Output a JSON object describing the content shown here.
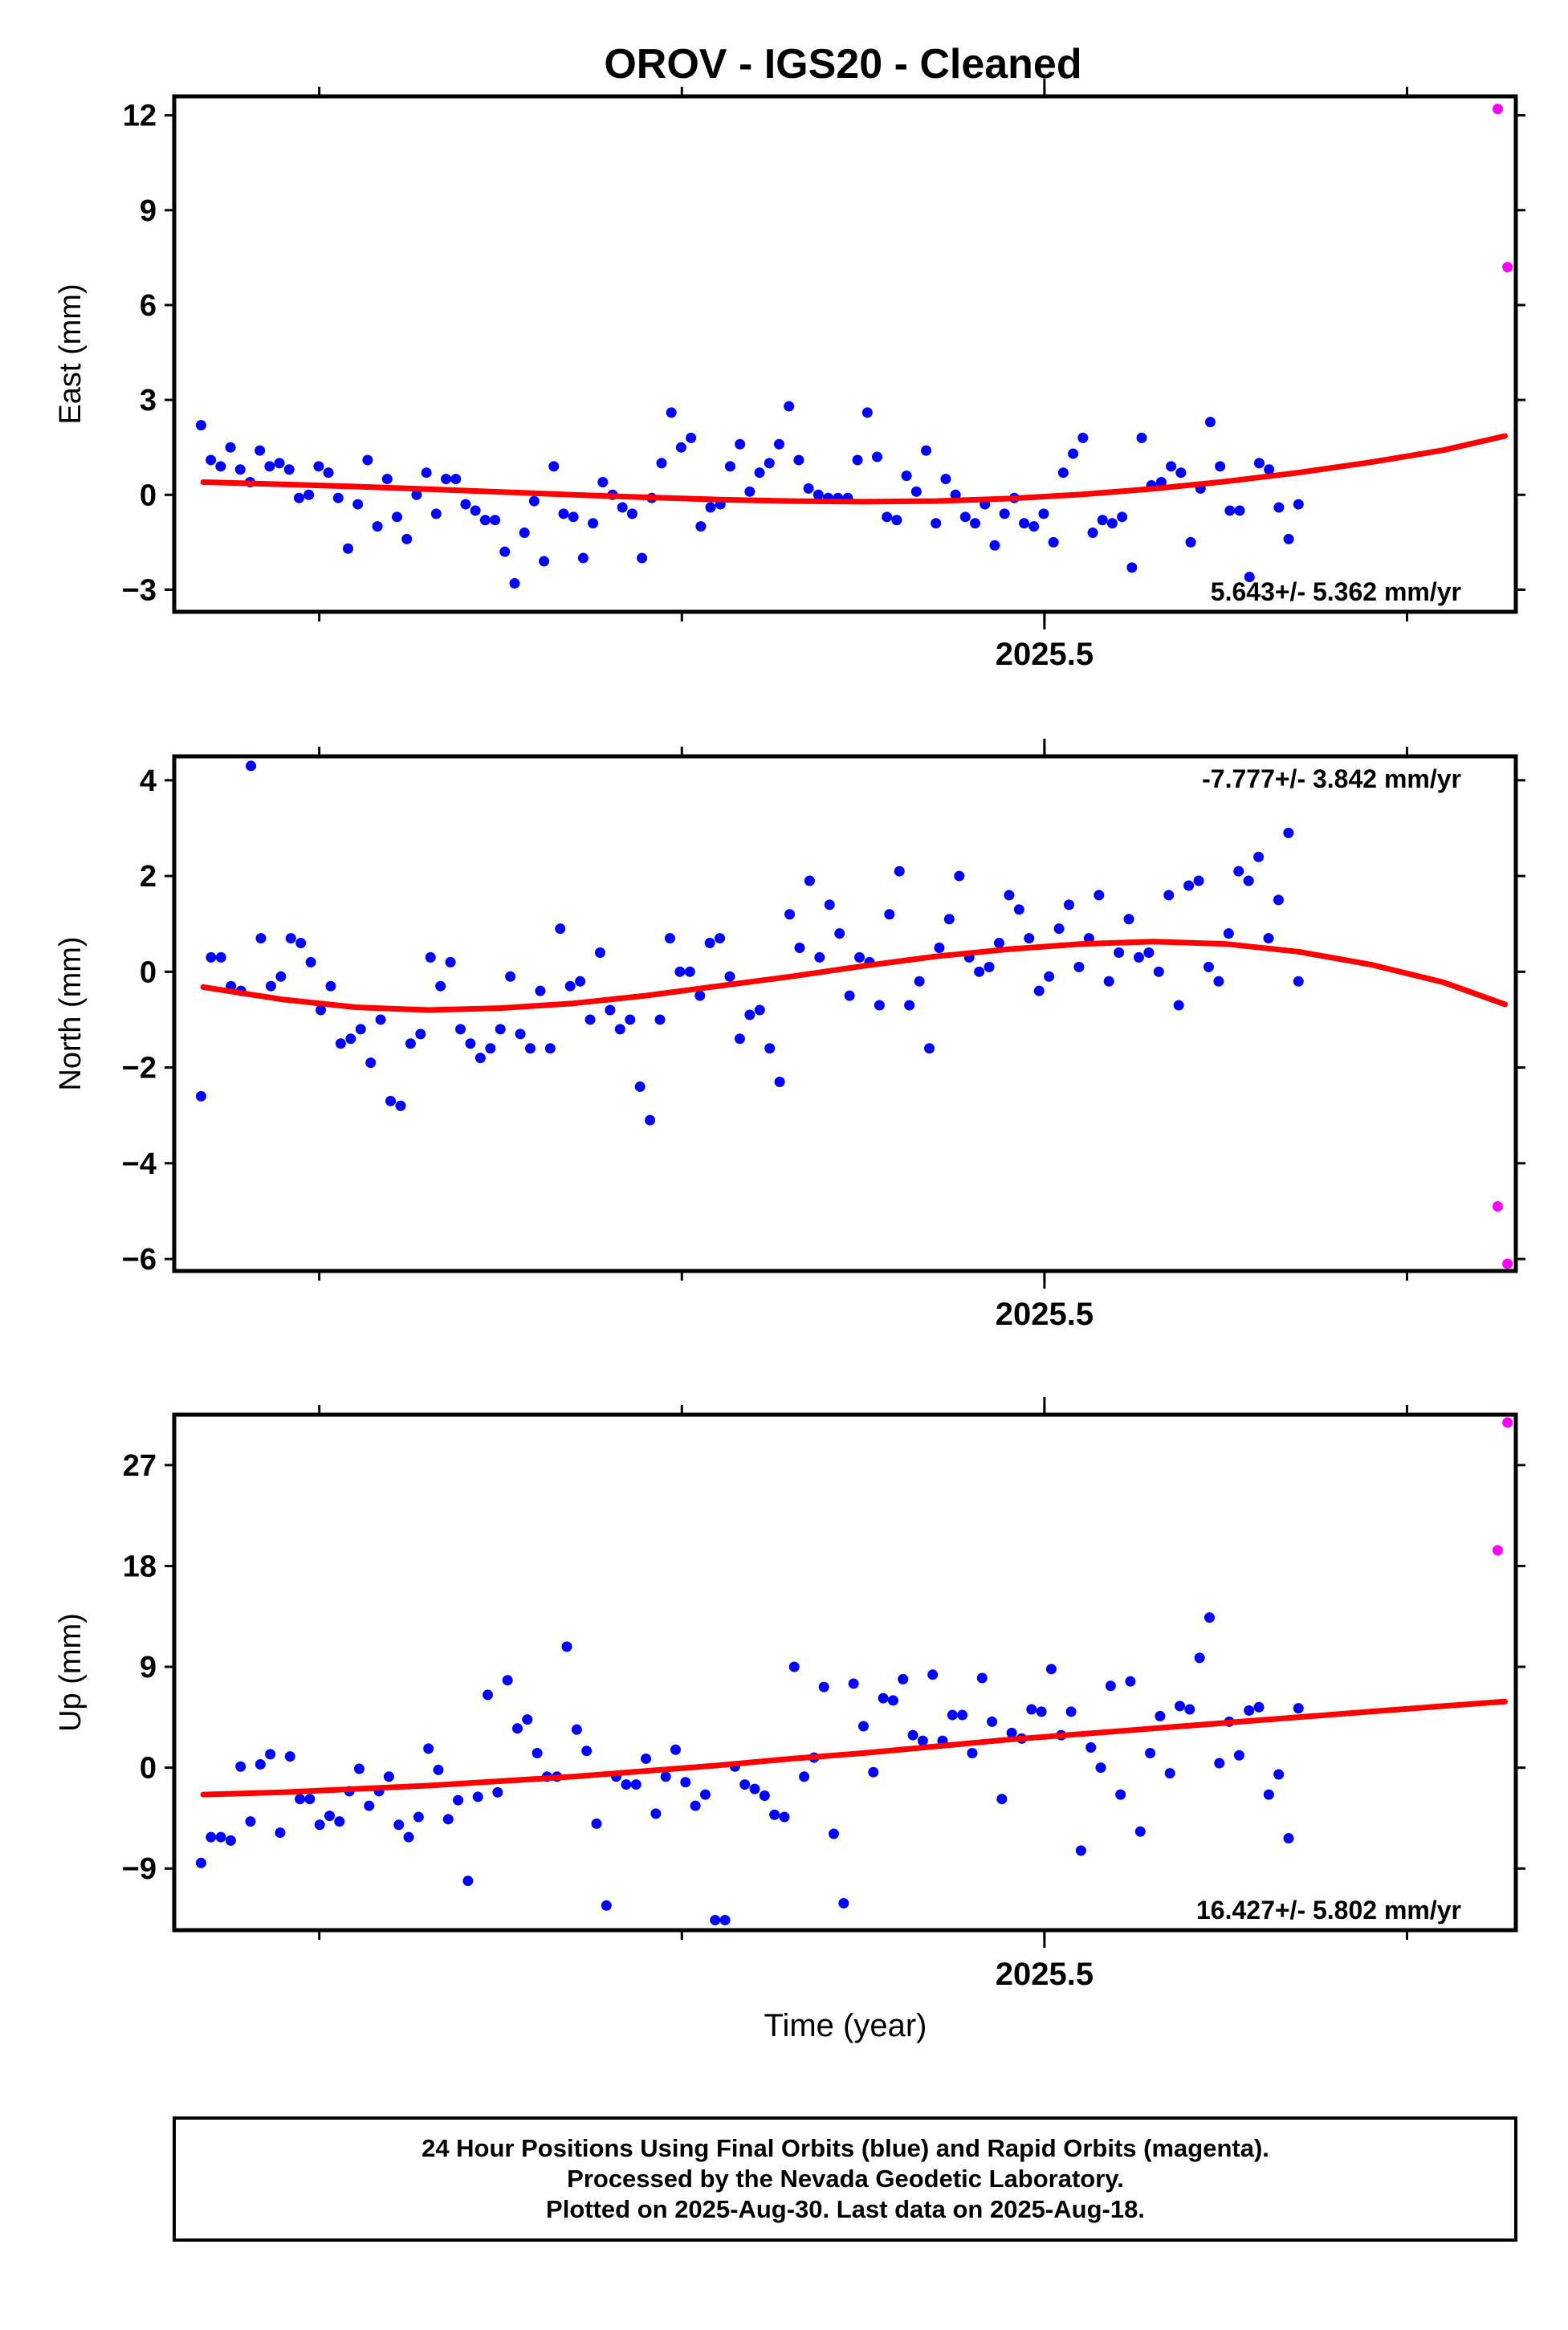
{
  "title": "OROV  - IGS20 - Cleaned",
  "xlabel": "Time (year)",
  "colors": {
    "final": "#0000ff",
    "rapid": "#ff00ff",
    "fit": "#ff0000",
    "frame": "#000000"
  },
  "caption": {
    "line1": "24 Hour Positions Using Final Orbits (blue) and Rapid Orbits (magenta).",
    "line2": "Processed by the Nevada Geodetic Laboratory.",
    "line3": "Plotted on 2025-Aug-30. Last data on 2025-Aug-18."
  },
  "chart_data": [
    {
      "type": "scatter",
      "ylabel": "East (mm)",
      "xlim": [
        2025.26,
        2025.63
      ],
      "ylim": [
        -3.7,
        12.6
      ],
      "yticks": [
        -3,
        0,
        3,
        6,
        9,
        12
      ],
      "xticks_major": [
        2025.5
      ],
      "xticks_minor": [
        2025.3,
        2025.4,
        2025.5,
        2025.6
      ],
      "x_tick_labels": [
        "2025.5"
      ],
      "rate": "5.643+/- 5.362 mm/yr",
      "series": [
        {
          "kind": "final",
          "y": [
            2.2,
            1.1,
            0.9,
            1.5,
            0.8,
            0.4,
            1.4,
            0.9,
            1.0,
            0.8,
            -0.1,
            0.0,
            0.9,
            0.7,
            -0.1,
            -1.7,
            -0.3,
            1.1,
            -1.0,
            0.5,
            -0.7,
            -1.4,
            0.0,
            0.7,
            -0.6,
            0.5,
            0.5,
            -0.3,
            -0.5,
            -0.8,
            -0.8,
            -1.8,
            -2.8,
            -1.2,
            -0.2,
            -2.1,
            0.9,
            -0.6,
            -0.7,
            -2.0,
            -0.9,
            0.4,
            0.0,
            -0.4,
            -0.6,
            -2.0,
            -0.1,
            1.0,
            2.6,
            1.5,
            1.8,
            -1.0,
            -0.4,
            -0.3,
            0.9,
            1.6,
            0.1,
            0.7,
            1.0,
            1.6,
            2.8,
            1.1,
            0.2,
            0.0,
            -0.1,
            -0.1,
            -0.1,
            1.1,
            2.6,
            1.2,
            -0.7,
            -0.8,
            0.6,
            0.1,
            1.4,
            -0.9,
            0.5,
            0.0,
            -0.7,
            -0.9,
            -0.3,
            -1.6,
            -0.6,
            -0.1,
            -0.9,
            -1.0,
            -0.6,
            -1.5,
            0.7,
            1.3,
            1.8,
            -1.2,
            -0.8,
            -0.9,
            -0.7,
            -2.3,
            1.8,
            0.3,
            0.4,
            0.9,
            0.7,
            -1.5,
            0.2,
            2.3,
            0.9,
            -0.5,
            -0.5,
            -2.6,
            1.0,
            0.8,
            -0.4,
            -1.4,
            -0.3
          ]
        },
        {
          "kind": "rapid",
          "x": [
            2025.625,
            2025.6277
          ],
          "y": [
            12.2,
            7.2
          ]
        }
      ],
      "fit": {
        "x": [
          2025.268,
          2025.29,
          2025.31,
          2025.33,
          2025.35,
          2025.37,
          2025.39,
          2025.41,
          2025.43,
          2025.45,
          2025.47,
          2025.49,
          2025.51,
          2025.53,
          2025.55,
          2025.57,
          2025.59,
          2025.61,
          2025.627
        ],
        "y": [
          0.4,
          0.33,
          0.26,
          0.18,
          0.09,
          0.0,
          -0.08,
          -0.15,
          -0.2,
          -0.22,
          -0.2,
          -0.12,
          0.01,
          0.19,
          0.42,
          0.7,
          1.03,
          1.41,
          1.86
        ]
      }
    },
    {
      "type": "scatter",
      "ylabel": "North (mm)",
      "xlim": [
        2025.26,
        2025.63
      ],
      "ylim": [
        -6.25,
        4.5
      ],
      "yticks": [
        -6,
        -4,
        -2,
        0,
        2,
        4
      ],
      "xticks_major": [
        2025.5
      ],
      "xticks_minor": [
        2025.3,
        2025.4,
        2025.5,
        2025.6
      ],
      "x_tick_labels": [
        "2025.5"
      ],
      "rate": "-7.777+/- 3.842 mm/yr",
      "series": [
        {
          "kind": "final",
          "y": [
            -2.6,
            0.3,
            0.3,
            -0.3,
            -0.4,
            4.3,
            0.7,
            -0.3,
            -0.1,
            0.7,
            0.6,
            0.2,
            -0.8,
            -0.3,
            -1.5,
            -1.4,
            -1.2,
            -1.9,
            -1.0,
            -2.7,
            -2.8,
            -1.5,
            -1.3,
            0.3,
            -0.3,
            0.2,
            -1.2,
            -1.5,
            -1.8,
            -1.6,
            -1.2,
            -0.1,
            -1.3,
            -1.6,
            -0.4,
            -1.6,
            0.9,
            -0.3,
            -0.2,
            -1.0,
            0.4,
            -0.8,
            -1.2,
            -1.0,
            -2.4,
            -3.1,
            -1.0,
            0.7,
            0.0,
            0.0,
            -0.5,
            0.6,
            0.7,
            -0.1,
            -1.4,
            -0.9,
            -0.8,
            -1.6,
            -2.3,
            1.2,
            0.5,
            1.9,
            0.3,
            1.4,
            0.8,
            -0.5,
            0.3,
            0.2,
            -0.7,
            1.2,
            2.1,
            -0.7,
            -0.2,
            -1.6,
            0.5,
            1.1,
            2.0,
            0.3,
            0.0,
            0.1,
            0.6,
            1.6,
            1.3,
            0.7,
            -0.4,
            -0.1,
            0.9,
            1.4,
            0.1,
            0.7,
            1.6,
            -0.2,
            0.4,
            1.1,
            0.3,
            0.4,
            0.0,
            1.6,
            -0.7,
            1.8,
            1.9,
            0.1,
            -0.2,
            0.8,
            2.1,
            1.9,
            2.4,
            0.7,
            1.5,
            2.9,
            -0.2
          ]
        },
        {
          "kind": "rapid",
          "x": [
            2025.625,
            2025.6277
          ],
          "y": [
            -4.9,
            -6.1
          ]
        }
      ],
      "fit": {
        "x": [
          2025.268,
          2025.29,
          2025.31,
          2025.33,
          2025.35,
          2025.37,
          2025.39,
          2025.41,
          2025.43,
          2025.45,
          2025.47,
          2025.49,
          2025.51,
          2025.53,
          2025.55,
          2025.57,
          2025.59,
          2025.61,
          2025.627
        ],
        "y": [
          -0.32,
          -0.58,
          -0.74,
          -0.8,
          -0.76,
          -0.66,
          -0.5,
          -0.3,
          -0.1,
          0.12,
          0.32,
          0.47,
          0.58,
          0.63,
          0.58,
          0.42,
          0.15,
          -0.22,
          -0.68
        ]
      }
    },
    {
      "type": "scatter",
      "ylabel": "Up (mm)",
      "xlim": [
        2025.26,
        2025.63
      ],
      "ylim": [
        -14.5,
        31.5
      ],
      "yticks": [
        -9,
        0,
        9,
        18,
        27
      ],
      "xticks_major": [
        2025.5
      ],
      "xticks_minor": [
        2025.3,
        2025.4,
        2025.5,
        2025.6
      ],
      "x_tick_labels": [
        "2025.5"
      ],
      "x_axis_label": "Time (year)",
      "rate": "16.427+/- 5.802 mm/yr",
      "series": [
        {
          "kind": "final",
          "y": [
            -8.5,
            -6.2,
            -6.2,
            -6.5,
            0.1,
            -4.8,
            0.3,
            1.2,
            -5.8,
            1.0,
            -2.8,
            -2.8,
            -5.1,
            -4.3,
            -4.8,
            -2.1,
            -0.1,
            -3.4,
            -2.1,
            -0.8,
            -5.1,
            -6.2,
            -4.4,
            1.7,
            -0.2,
            -4.6,
            -2.9,
            -10.1,
            -2.6,
            6.5,
            -2.2,
            7.8,
            3.5,
            4.3,
            1.3,
            -0.8,
            -0.8,
            10.8,
            3.4,
            1.5,
            -5.0,
            -12.3,
            -0.8,
            -1.5,
            -1.5,
            0.8,
            -4.1,
            -0.8,
            1.6,
            -1.3,
            -3.4,
            -2.4,
            -13.6,
            -13.6,
            0.1,
            -1.5,
            -1.9,
            -2.5,
            -4.2,
            -4.4,
            9.0,
            -0.8,
            0.9,
            7.2,
            -5.9,
            -12.1,
            7.5,
            3.7,
            -0.4,
            6.2,
            6.0,
            7.9,
            2.9,
            2.4,
            8.3,
            2.4,
            4.7,
            4.7,
            1.3,
            8.0,
            4.1,
            -2.8,
            3.1,
            2.6,
            5.2,
            5.0,
            8.8,
            2.9,
            5.0,
            -7.4,
            1.8,
            0.0,
            7.3,
            -2.4,
            7.7,
            -5.7,
            1.3,
            4.6,
            -0.5,
            5.5,
            5.2,
            9.8,
            13.4,
            0.4,
            4.1,
            1.1,
            5.1,
            5.4,
            -2.4,
            -0.6,
            -6.3,
            5.3
          ]
        },
        {
          "kind": "rapid",
          "x": [
            2025.625,
            2025.6277
          ],
          "y": [
            19.4,
            30.8
          ]
        }
      ],
      "fit": {
        "x": [
          2025.268,
          2025.29,
          2025.31,
          2025.33,
          2025.35,
          2025.37,
          2025.39,
          2025.41,
          2025.43,
          2025.45,
          2025.47,
          2025.49,
          2025.51,
          2025.53,
          2025.55,
          2025.57,
          2025.59,
          2025.61,
          2025.627
        ],
        "y": [
          -2.4,
          -2.2,
          -1.9,
          -1.6,
          -1.2,
          -0.8,
          -0.3,
          0.2,
          0.8,
          1.3,
          1.9,
          2.5,
          3.0,
          3.5,
          4.0,
          4.5,
          5.0,
          5.5,
          5.9
        ]
      }
    }
  ]
}
